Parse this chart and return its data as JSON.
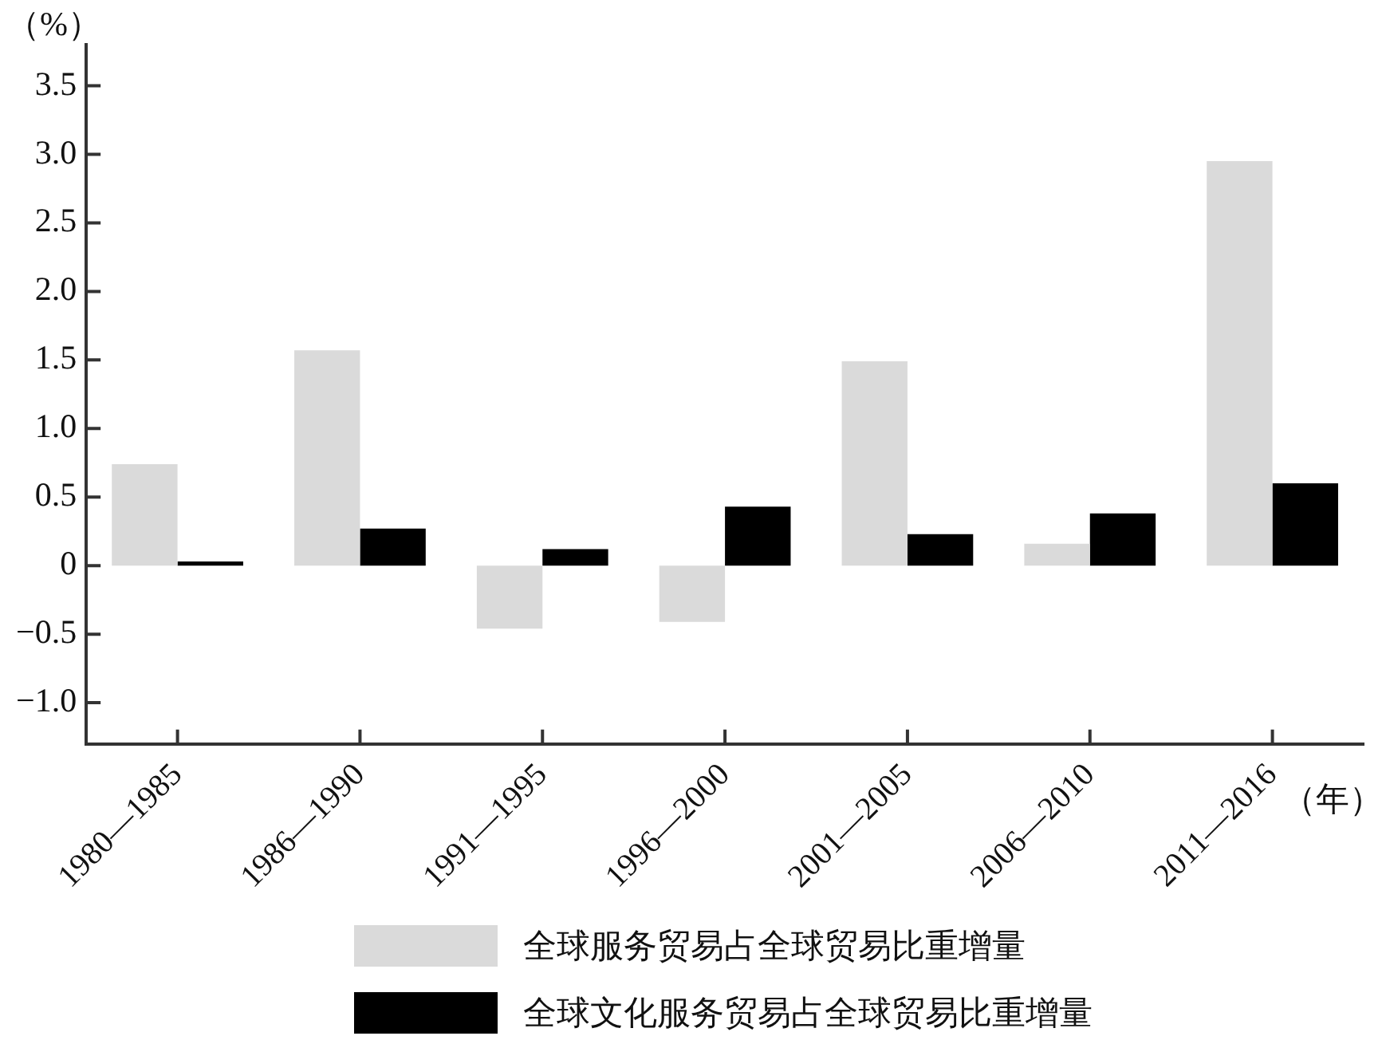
{
  "chart_data": {
    "type": "bar",
    "ylabel": "（%）",
    "xlabel": "（年）",
    "categories": [
      "1980—1985",
      "1986—1990",
      "1991—1995",
      "1996—2000",
      "2001—2005",
      "2006—2010",
      "2011—2016"
    ],
    "series": [
      {
        "name": "全球服务贸易占全球贸易比重增量",
        "color": "#dadada",
        "values": [
          0.74,
          1.57,
          -0.46,
          -0.41,
          1.49,
          0.16,
          2.95
        ]
      },
      {
        "name": "全球文化服务贸易占全球贸易比重增量",
        "color": "#000000",
        "values": [
          0.03,
          0.27,
          0.12,
          0.43,
          0.23,
          0.38,
          0.6
        ]
      }
    ],
    "ylim": [
      -1.3,
      3.8
    ],
    "yticks": [
      {
        "value": -1,
        "label": "−1.0"
      },
      {
        "value": -0.5,
        "label": "−0.5"
      },
      0,
      0.5,
      {
        "value": 1,
        "label": "1.0"
      },
      1.5,
      {
        "value": 2,
        "label": "2.0"
      },
      2.5,
      {
        "value": 3,
        "label": "3.0"
      },
      3.5
    ],
    "grid": false,
    "legend": "bottom"
  }
}
